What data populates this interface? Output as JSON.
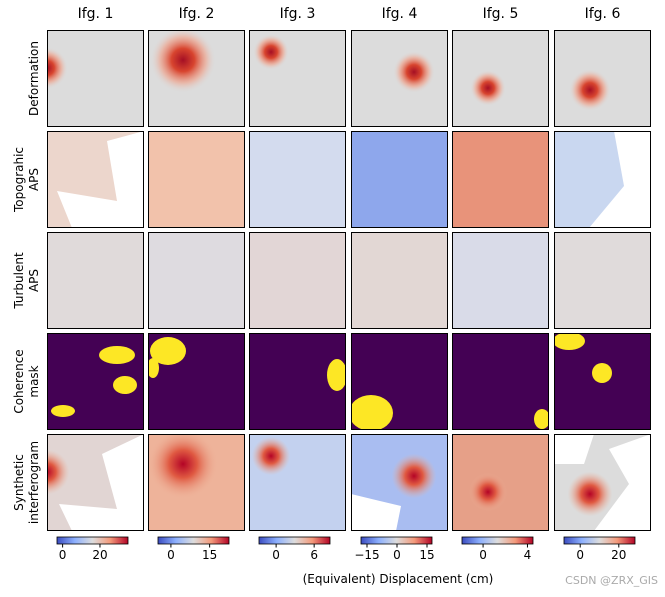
{
  "figure": {
    "columns": [
      "Ifg. 1",
      "Ifg. 2",
      "Ifg. 3",
      "Ifg. 4",
      "Ifg. 5",
      "Ifg. 6"
    ],
    "rows": [
      [
        "Deformation"
      ],
      [
        "Topograhic",
        "APS"
      ],
      [
        "Turbulent",
        "APS"
      ],
      [
        "Coherence",
        "mask"
      ],
      [
        "Synthetic",
        "interferogram"
      ]
    ],
    "colorbars": [
      {
        "lim": [
          -3,
          35
        ],
        "ticks": [
          0,
          20
        ]
      },
      {
        "lim": [
          -5,
          22.5
        ],
        "ticks": [
          0,
          15
        ]
      },
      {
        "lim": [
          -2.7,
          8.5
        ],
        "ticks": [
          0,
          6
        ]
      },
      {
        "lim": [
          -18,
          17.5
        ],
        "ticks": [
          {
            "value": -15,
            "label": "−15"
          },
          0,
          15
        ]
      },
      {
        "lim": [
          -1.9,
          4.5
        ],
        "ticks": [
          0,
          4
        ]
      },
      {
        "lim": [
          -8.4,
          28.4
        ],
        "ticks": [
          0,
          20
        ]
      }
    ],
    "xlabel": "(Equivalent) Displacement (cm)",
    "watermark": "CSDN @ZRX_GIS"
  }
}
